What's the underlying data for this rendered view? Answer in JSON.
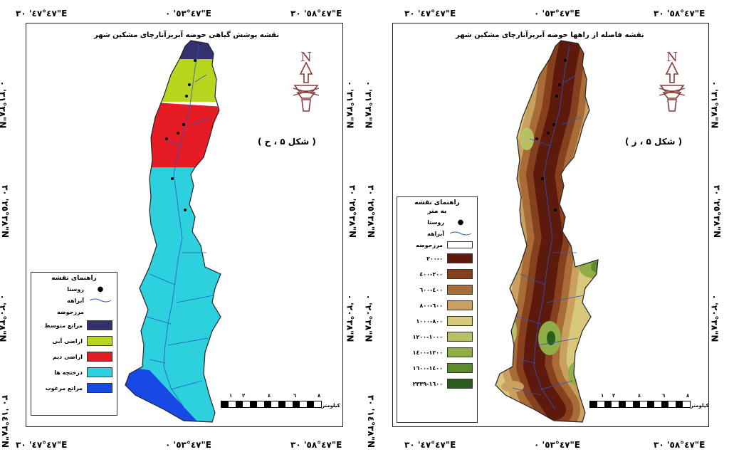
{
  "coords": {
    "top_left_map": [
      "٤٧°٤٧' ٣٠\"E",
      "٤٧°٥٣' ٠\"E",
      "٤٧°٥٨' ٣٠\"E"
    ],
    "bottom_left_map": [
      "٤٧°٤٧' ٣٠\"E",
      "٤٧°٥٣' ٠\"E",
      "٤٧°٥٨' ٣٠\"E"
    ],
    "top_right_map": [
      "٤٧°٤٧' ٣٠\"E",
      "٤٧°٥٣' ٠\"E",
      "٤٧°٥٨' ٣٠\"E"
    ],
    "bottom_right_map": [
      "٤٧°٤٧' ٣٠\"E",
      "٤٧°٥٣' ٠\"E",
      "٤٧°٥٨' ٣٠\"E"
    ],
    "lat": [
      "٣٨°٣١' ٠\"N",
      "٣٨°٢٥' ٣٠\"N",
      "٣٨°٢٠' ٠\"N",
      "٣٨°١٤' ٣٠\"N"
    ]
  },
  "left_map": {
    "title": "نقشه پوشش گیاهی حوضه آبریزآنارچای مشکین شهر",
    "figure_label": "( شکل ۵ ، ح )",
    "legend_title": "راهنمای نقشه",
    "legend_symbols": [
      "روستا",
      "آبراهه",
      "مرزحوضه"
    ],
    "legend_classes": [
      {
        "label": "مراتع متوسط",
        "color": "#35306e"
      },
      {
        "label": "اراضی آبی",
        "color": "#b9d61e"
      },
      {
        "label": "اراضی دیم",
        "color": "#e51c24"
      },
      {
        "label": "درختچه ها",
        "color": "#2dd1de"
      },
      {
        "label": "مراتع مرغوب",
        "color": "#1749e6"
      }
    ],
    "scale_ticks": [
      "١",
      "٢",
      "٤",
      "٦",
      "٨"
    ],
    "scale_unit": "کیلومتر"
  },
  "right_map": {
    "title": "نقشه فاصله از راهها حوضه آبریزآنارچای مشکین شهر",
    "figure_label": "( شکل ۵ ، ز )",
    "legend_title": "راهنمای نقشه",
    "legend_subtitle": "به متر",
    "legend_symbols": [
      "روستا",
      "آبراهه",
      "مرزحوضه"
    ],
    "legend_classes": [
      {
        "label": "٠-٢٠٠",
        "color": "#5c1a0c"
      },
      {
        "label": "٢٠٠-٤٠٠",
        "color": "#86401e"
      },
      {
        "label": "٤٠٠-٦٠٠",
        "color": "#a86d36"
      },
      {
        "label": "٦٠٠-٨٠٠",
        "color": "#c9a060"
      },
      {
        "label": "٨٠٠-١٠٠٠",
        "color": "#d8c87a"
      },
      {
        "label": "١٠٠٠-١٢٠٠",
        "color": "#b8c066"
      },
      {
        "label": "١٢٠٠-١٤٠٠",
        "color": "#8fae48"
      },
      {
        "label": "١٤٠٠-١٦٠٠",
        "color": "#5d8a2e"
      },
      {
        "label": "١٦٠٠-٢٣٣٩",
        "color": "#2b5e1c"
      }
    ],
    "scale_ticks": [
      "١",
      "٢",
      "٤",
      "٦",
      "٨"
    ],
    "scale_unit": "کیلومتر"
  },
  "colors": {
    "stream": "#2a55c8",
    "boundary": "#222222",
    "north_arrow": "#8b3a3a"
  }
}
